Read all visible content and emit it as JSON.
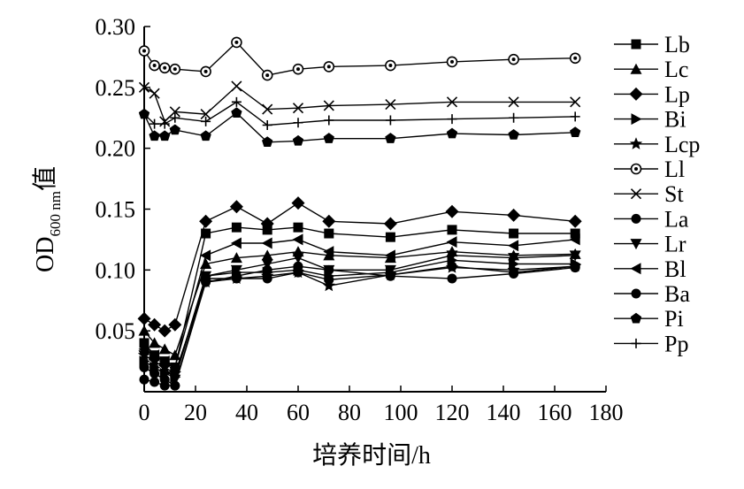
{
  "chart_data": {
    "type": "line",
    "title": "",
    "xlabel": "培养时间/h",
    "ylabel_main": "OD",
    "ylabel_sub": "600 nm",
    "ylabel_suffix": "值",
    "xlim": [
      0,
      180
    ],
    "ylim": [
      0,
      0.3
    ],
    "x_ticks": [
      "0",
      "20",
      "40",
      "60",
      "80",
      "100",
      "120",
      "140",
      "160",
      "180"
    ],
    "y_ticks": [
      "0.05",
      "0.10",
      "0.15",
      "0.20",
      "0.25",
      "0.30"
    ],
    "grid": false,
    "legend_position": "right",
    "x": [
      0,
      4,
      8,
      12,
      24,
      36,
      48,
      60,
      72,
      96,
      120,
      144,
      168
    ],
    "series": [
      {
        "name": "Lb",
        "marker": "square",
        "values": [
          0.04,
          0.03,
          0.025,
          0.02,
          0.13,
          0.135,
          0.133,
          0.135,
          0.13,
          0.127,
          0.133,
          0.13,
          0.13
        ]
      },
      {
        "name": "Lc",
        "marker": "triangle-up",
        "values": [
          0.05,
          0.04,
          0.035,
          0.03,
          0.105,
          0.11,
          0.112,
          0.115,
          0.112,
          0.11,
          0.115,
          0.112,
          0.113
        ]
      },
      {
        "name": "Lp",
        "marker": "diamond",
        "values": [
          0.06,
          0.055,
          0.05,
          0.055,
          0.14,
          0.152,
          0.138,
          0.155,
          0.14,
          0.138,
          0.148,
          0.145,
          0.14
        ]
      },
      {
        "name": "Bi",
        "marker": "triangle-right",
        "values": [
          0.025,
          0.02,
          0.015,
          0.012,
          0.095,
          0.098,
          0.098,
          0.1,
          0.095,
          0.098,
          0.108,
          0.105,
          0.105
        ]
      },
      {
        "name": "Lcp",
        "marker": "star",
        "values": [
          0.03,
          0.025,
          0.02,
          0.015,
          0.09,
          0.093,
          0.095,
          0.098,
          0.087,
          0.096,
          0.102,
          0.1,
          0.103
        ]
      },
      {
        "name": "Ll",
        "marker": "circle-open-dot",
        "values": [
          0.28,
          0.268,
          0.266,
          0.265,
          0.263,
          0.287,
          0.26,
          0.265,
          0.267,
          0.268,
          0.271,
          0.273,
          0.274
        ]
      },
      {
        "name": "St",
        "marker": "x",
        "values": [
          0.25,
          0.245,
          0.222,
          0.23,
          0.228,
          0.251,
          0.232,
          0.233,
          0.235,
          0.236,
          0.238,
          0.238,
          0.238
        ]
      },
      {
        "name": "La",
        "marker": "circle",
        "values": [
          0.02,
          0.015,
          0.01,
          0.005,
          0.09,
          0.095,
          0.1,
          0.103,
          0.1,
          0.095,
          0.093,
          0.097,
          0.102
        ]
      },
      {
        "name": "Lr",
        "marker": "triangle-down",
        "values": [
          0.03,
          0.025,
          0.02,
          0.01,
          0.095,
          0.1,
          0.105,
          0.11,
          0.1,
          0.1,
          0.112,
          0.11,
          0.112
        ]
      },
      {
        "name": "Bl",
        "marker": "triangle-left",
        "values": [
          0.035,
          0.03,
          0.025,
          0.02,
          0.112,
          0.122,
          0.122,
          0.125,
          0.115,
          0.112,
          0.123,
          0.12,
          0.125
        ]
      },
      {
        "name": "Ba",
        "marker": "circle",
        "values": [
          0.01,
          0.008,
          0.005,
          0.005,
          0.093,
          0.093,
          0.093,
          0.098,
          0.092,
          0.096,
          0.103,
          0.098,
          0.103
        ]
      },
      {
        "name": "Pi",
        "marker": "pentagon",
        "values": [
          0.228,
          0.21,
          0.21,
          0.215,
          0.21,
          0.229,
          0.205,
          0.206,
          0.208,
          0.208,
          0.212,
          0.211,
          0.213
        ]
      },
      {
        "name": "Pp",
        "marker": "plus",
        "values": [
          0.228,
          0.22,
          0.22,
          0.225,
          0.222,
          0.238,
          0.219,
          0.221,
          0.223,
          0.223,
          0.224,
          0.225,
          0.226
        ]
      }
    ]
  }
}
